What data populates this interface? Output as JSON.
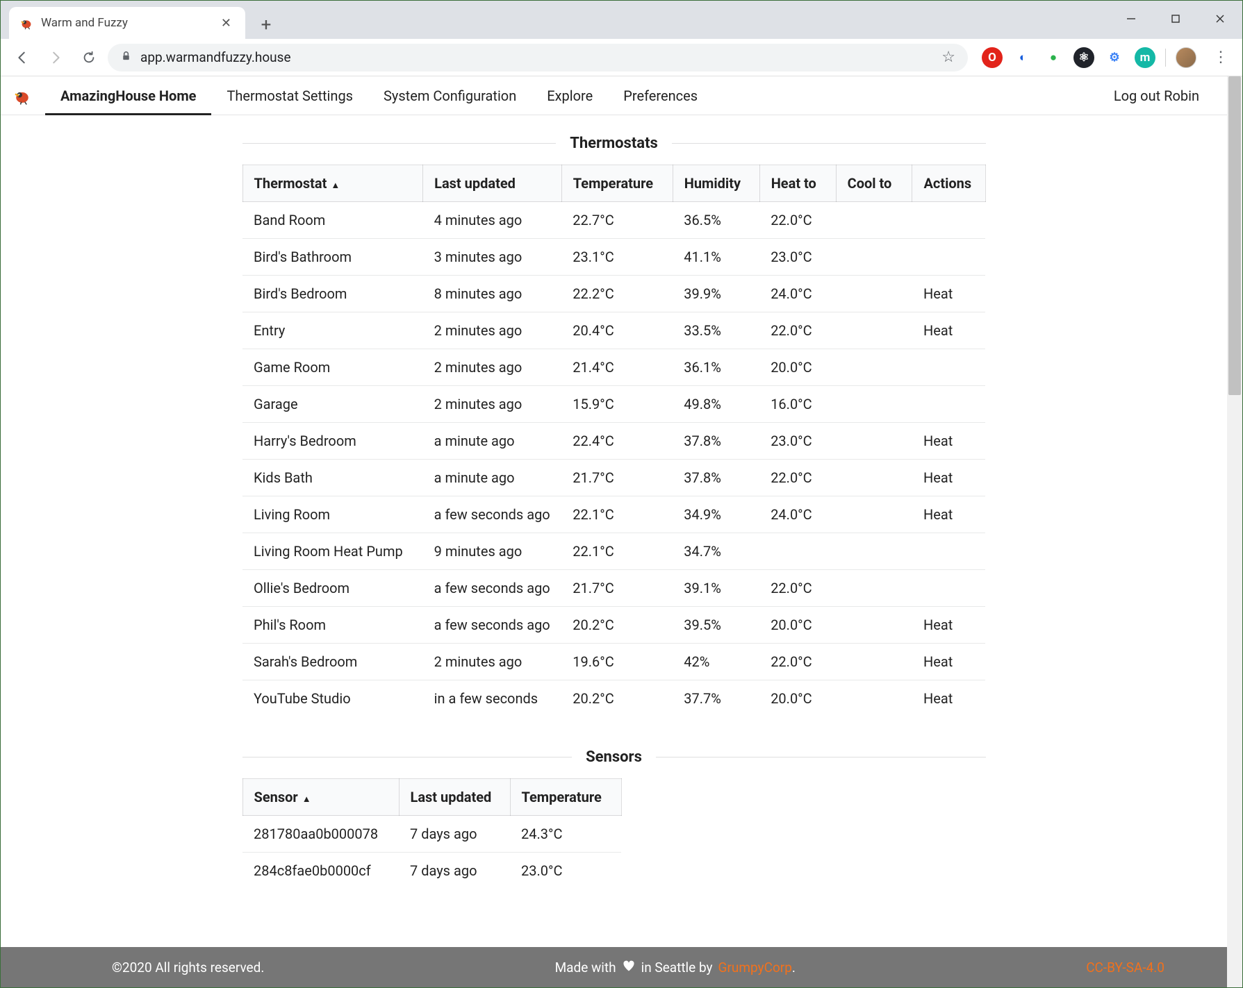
{
  "browser": {
    "tab_title": "Warm and Fuzzy",
    "url_host": "app.warmandfuzzy.house",
    "extension_icons": [
      {
        "name": "star-icon",
        "glyph": "☆",
        "color": "#5f6368",
        "bg": "transparent"
      },
      {
        "name": "adblock-icon",
        "glyph": "O",
        "color": "#ffffff",
        "bg": "#e2231a"
      },
      {
        "name": "bitwarden-icon",
        "glyph": "◐",
        "color": "#175ddc",
        "bg": "transparent"
      },
      {
        "name": "green-dot-icon",
        "glyph": "●",
        "color": "#2bb24c",
        "bg": "transparent"
      },
      {
        "name": "react-devtools-icon",
        "glyph": "⚛",
        "color": "#ffffff",
        "bg": "#20232a"
      },
      {
        "name": "gear-badge-icon",
        "glyph": "⚙",
        "color": "#3b82f6",
        "bg": "transparent"
      },
      {
        "name": "teal-m-icon",
        "glyph": "m",
        "color": "#ffffff",
        "bg": "#14b8a6"
      }
    ]
  },
  "nav": {
    "items": [
      {
        "label": "AmazingHouse Home",
        "active": true
      },
      {
        "label": "Thermostat Settings",
        "active": false
      },
      {
        "label": "System Configuration",
        "active": false
      },
      {
        "label": "Explore",
        "active": false
      },
      {
        "label": "Preferences",
        "active": false
      }
    ],
    "logout": "Log out Robin"
  },
  "thermostats": {
    "title": "Thermostats",
    "columns": [
      "Thermostat",
      "Last updated",
      "Temperature",
      "Humidity",
      "Heat to",
      "Cool to",
      "Actions"
    ],
    "col_widths": [
      "260px",
      "200px",
      "160px",
      "125px",
      "110px",
      "110px",
      "105px"
    ],
    "sorted_col": 0,
    "rows": [
      {
        "name": "Band Room",
        "updated": "4 minutes ago",
        "temp": "22.7°C",
        "hum": "36.5%",
        "heat": "22.0°C",
        "cool": "",
        "actions": ""
      },
      {
        "name": "Bird's Bathroom",
        "updated": "3 minutes ago",
        "temp": "23.1°C",
        "hum": "41.1%",
        "heat": "23.0°C",
        "cool": "",
        "actions": ""
      },
      {
        "name": "Bird's Bedroom",
        "updated": "8 minutes ago",
        "temp": "22.2°C",
        "hum": "39.9%",
        "heat": "24.0°C",
        "cool": "",
        "actions": "Heat"
      },
      {
        "name": "Entry",
        "updated": "2 minutes ago",
        "temp": "20.4°C",
        "hum": "33.5%",
        "heat": "22.0°C",
        "cool": "",
        "actions": "Heat"
      },
      {
        "name": "Game Room",
        "updated": "2 minutes ago",
        "temp": "21.4°C",
        "hum": "36.1%",
        "heat": "20.0°C",
        "cool": "",
        "actions": ""
      },
      {
        "name": "Garage",
        "updated": "2 minutes ago",
        "temp": "15.9°C",
        "hum": "49.8%",
        "heat": "16.0°C",
        "cool": "",
        "actions": ""
      },
      {
        "name": "Harry's Bedroom",
        "updated": "a minute ago",
        "temp": "22.4°C",
        "hum": "37.8%",
        "heat": "23.0°C",
        "cool": "",
        "actions": "Heat"
      },
      {
        "name": "Kids Bath",
        "updated": "a minute ago",
        "temp": "21.7°C",
        "hum": "37.8%",
        "heat": "22.0°C",
        "cool": "",
        "actions": "Heat"
      },
      {
        "name": "Living Room",
        "updated": "a few seconds ago",
        "temp": "22.1°C",
        "hum": "34.9%",
        "heat": "24.0°C",
        "cool": "",
        "actions": "Heat"
      },
      {
        "name": "Living Room Heat Pump",
        "updated": "9 minutes ago",
        "temp": "22.1°C",
        "hum": "34.7%",
        "heat": "",
        "cool": "",
        "actions": ""
      },
      {
        "name": "Ollie's Bedroom",
        "updated": "a few seconds ago",
        "temp": "21.7°C",
        "hum": "39.1%",
        "heat": "22.0°C",
        "cool": "",
        "actions": ""
      },
      {
        "name": "Phil's Room",
        "updated": "a few seconds ago",
        "temp": "20.2°C",
        "hum": "39.5%",
        "heat": "20.0°C",
        "cool": "",
        "actions": "Heat"
      },
      {
        "name": "Sarah's Bedroom",
        "updated": "2 minutes ago",
        "temp": "19.6°C",
        "hum": "42%",
        "heat": "22.0°C",
        "cool": "",
        "actions": "Heat"
      },
      {
        "name": "YouTube Studio",
        "updated": "in a few seconds",
        "temp": "20.2°C",
        "hum": "37.7%",
        "heat": "20.0°C",
        "cool": "",
        "actions": "Heat"
      }
    ]
  },
  "sensors": {
    "title": "Sensors",
    "columns": [
      "Sensor",
      "Last updated",
      "Temperature"
    ],
    "col_widths": [
      "225px",
      "160px",
      "160px"
    ],
    "sorted_col": 0,
    "rows": [
      {
        "sensor": "281780aa0b000078",
        "updated": "7 days ago",
        "temp": "24.3°C"
      },
      {
        "sensor": "284c8fae0b0000cf",
        "updated": "7 days ago",
        "temp": "23.0°C"
      }
    ]
  },
  "footer": {
    "left": "©2020 All rights reserved.",
    "center_pre": "Made with",
    "center_post": "in Seattle by",
    "link": "GrumpyCorp",
    "period": ".",
    "right": "CC-BY-SA-4.0"
  },
  "colors": {
    "accent_link": "#f2711c",
    "footer_bg": "#767676",
    "titlebar_bg": "#dee1e6",
    "omnibox_bg": "#f1f3f4",
    "table_header_bg": "#f9fafb",
    "border": "rgba(34,36,38,0.15)"
  }
}
